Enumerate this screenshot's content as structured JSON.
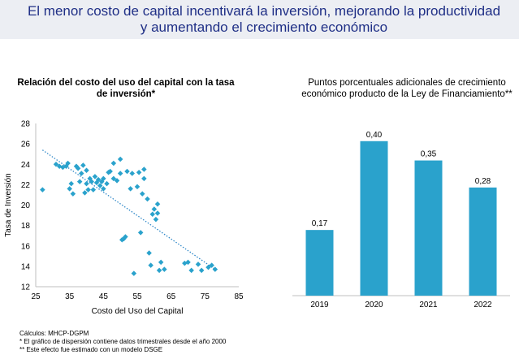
{
  "header": {
    "title": "El menor costo de capital incentivará la inversión, mejorando la productividad y aumentando el crecimiento económico"
  },
  "chart_data": [
    {
      "type": "scatter",
      "title": "Relación del costo del uso del capital con la tasa de inversión*",
      "xlabel": "Costo del Uso del Capital",
      "ylabel": "Tasa de Inversión",
      "xlim": [
        25,
        85
      ],
      "ylim": [
        12,
        28
      ],
      "xticks": [
        25,
        35,
        45,
        55,
        65,
        75,
        85
      ],
      "yticks": [
        12,
        14,
        16,
        18,
        20,
        22,
        24,
        26,
        28
      ],
      "trendline": {
        "x": [
          27,
          78
        ],
        "y": [
          25.4,
          13.7
        ],
        "style": "dotted"
      },
      "points": [
        [
          27,
          21.5
        ],
        [
          31,
          24
        ],
        [
          32,
          23.8
        ],
        [
          33,
          23.7
        ],
        [
          34,
          23.8
        ],
        [
          34.5,
          24.1
        ],
        [
          35,
          21.6
        ],
        [
          35.5,
          22.1
        ],
        [
          36,
          21.1
        ],
        [
          37,
          23.8
        ],
        [
          37.5,
          23.6
        ],
        [
          38,
          22.3
        ],
        [
          38.5,
          23.1
        ],
        [
          39,
          23.9
        ],
        [
          39.5,
          21.2
        ],
        [
          40,
          22.1
        ],
        [
          40,
          23.4
        ],
        [
          40.5,
          21.5
        ],
        [
          41,
          22.6
        ],
        [
          41.5,
          22.3
        ],
        [
          42,
          21.5
        ],
        [
          42.5,
          22.8
        ],
        [
          43,
          22.2
        ],
        [
          43.5,
          22.5
        ],
        [
          44,
          21.9
        ],
        [
          44.5,
          22.3
        ],
        [
          45,
          21.6
        ],
        [
          45,
          22.6
        ],
        [
          46,
          22.1
        ],
        [
          46.5,
          23.2
        ],
        [
          47,
          23.3
        ],
        [
          48,
          24.1
        ],
        [
          48,
          22.6
        ],
        [
          49,
          22.4
        ],
        [
          50,
          24.5
        ],
        [
          50,
          23.1
        ],
        [
          50.5,
          16.6
        ],
        [
          51,
          16.7
        ],
        [
          51.5,
          16.9
        ],
        [
          52,
          23.3
        ],
        [
          53,
          21.6
        ],
        [
          53.5,
          23.1
        ],
        [
          54,
          13.3
        ],
        [
          55,
          21.8
        ],
        [
          55.5,
          23.2
        ],
        [
          56,
          17.3
        ],
        [
          56.5,
          21.1
        ],
        [
          57,
          22.6
        ],
        [
          57,
          23.5
        ],
        [
          58,
          20.6
        ],
        [
          58.5,
          15.3
        ],
        [
          59,
          14.1
        ],
        [
          59.5,
          19.1
        ],
        [
          60,
          19.6
        ],
        [
          60.5,
          18.6
        ],
        [
          61,
          19.2
        ],
        [
          61,
          20.1
        ],
        [
          61.5,
          13.6
        ],
        [
          62,
          14.4
        ],
        [
          63,
          13.7
        ],
        [
          69,
          14.3
        ],
        [
          70,
          14.4
        ],
        [
          71,
          13.6
        ],
        [
          73,
          14.2
        ],
        [
          74,
          13.6
        ],
        [
          76,
          13.9
        ],
        [
          77,
          14.1
        ],
        [
          78,
          13.7
        ]
      ]
    },
    {
      "type": "bar",
      "title": "Puntos porcentuales adicionales de crecimiento económico producto de la Ley de Financiamiento**",
      "categories": [
        "2019",
        "2020",
        "2021",
        "2022"
      ],
      "values": [
        0.17,
        0.4,
        0.35,
        0.28
      ],
      "labels": [
        "0,17",
        "0,40",
        "0,35",
        "0,28"
      ],
      "color": "#2aa2cc",
      "ylim": [
        0,
        0.45
      ]
    }
  ],
  "footnotes": [
    "Cálculos: MHCP-DGPM",
    "* El gráfico de dispersión contiene datos trimestrales desde el año 2000",
    "** Este efecto fue estimado con un modelo DSGE"
  ],
  "colors": {
    "title": "#1f2f86",
    "point": "#2aa2cc",
    "bar": "#2aa2cc",
    "trend": "#2f88c8"
  }
}
